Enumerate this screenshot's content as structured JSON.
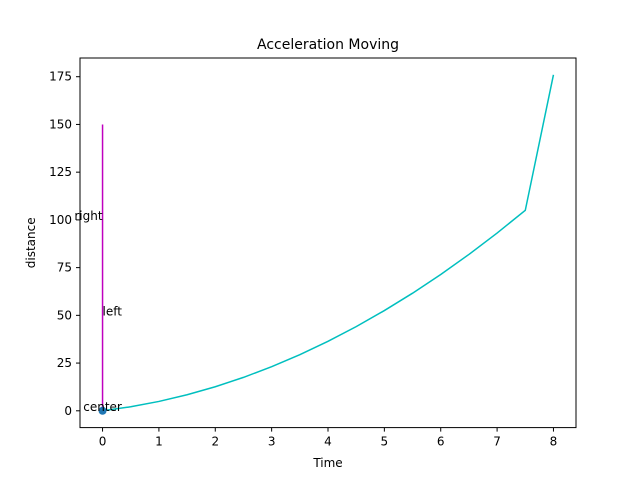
{
  "chart_data": {
    "type": "line",
    "title": "Acceleration Moving",
    "xlabel": "Time",
    "ylabel": "distance",
    "xlim": [
      -0.4,
      8.4
    ],
    "ylim": [
      -8.8,
      184.8
    ],
    "xticks": [
      0,
      1,
      2,
      3,
      4,
      5,
      6,
      7,
      8
    ],
    "yticks": [
      0,
      25,
      50,
      75,
      100,
      125,
      150,
      175
    ],
    "grid": false,
    "series": [
      {
        "color": "#00bfbf",
        "x": [
          0,
          0.5,
          1,
          1.5,
          2,
          2.5,
          3,
          3.5,
          4,
          4.5,
          5,
          5.5,
          6,
          6.5,
          7,
          7.5,
          8
        ],
        "y": [
          0,
          2.1,
          4.9,
          8.4,
          12.6,
          17.5,
          23.1,
          29.4,
          36.4,
          44.1,
          52.5,
          61.6,
          71.4,
          81.9,
          93.1,
          105.0,
          176.0
        ]
      },
      {
        "color": "#bf00bf",
        "x": [
          0,
          0
        ],
        "y": [
          0,
          150
        ]
      }
    ],
    "points": [
      {
        "x": 0,
        "y": 0,
        "color": "#1f77b4"
      }
    ],
    "annotations": [
      {
        "text": "center",
        "x": 0,
        "y": 0,
        "ha": "center"
      },
      {
        "text": "left",
        "x": 0,
        "y": 50,
        "ha": "left"
      },
      {
        "text": "right",
        "x": 0,
        "y": 100,
        "ha": "right"
      }
    ]
  }
}
